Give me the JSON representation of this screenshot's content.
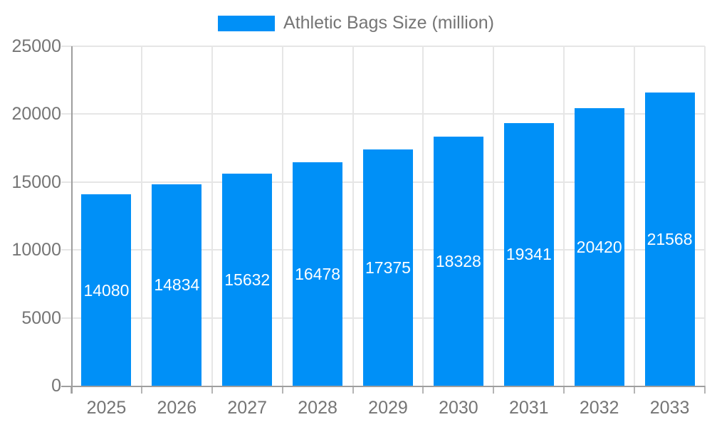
{
  "chart_data": {
    "type": "bar",
    "title": "Athletic Bags Size (million)",
    "legend_entries": [
      "Athletic Bags Size (million)"
    ],
    "legend_position": "top-center",
    "categories": [
      "2025",
      "2026",
      "2027",
      "2028",
      "2029",
      "2030",
      "2031",
      "2032",
      "2033"
    ],
    "values": [
      14080,
      14834,
      15632,
      16478,
      17375,
      18328,
      19341,
      20420,
      21568
    ],
    "bar_value_labels": [
      "14080",
      "14834",
      "15632",
      "16478",
      "17375",
      "18328",
      "19341",
      "20420",
      "21568"
    ],
    "xlabel": "",
    "ylabel": "",
    "ylim": [
      0,
      25000
    ],
    "yticks": [
      0,
      5000,
      10000,
      15000,
      20000,
      25000
    ],
    "ytick_labels": [
      "0",
      "5000",
      "10000",
      "15000",
      "20000",
      "25000"
    ],
    "grid": true,
    "colors": {
      "bar": "#0090F7",
      "bar_label_text": "#FFFFFF",
      "axis_text": "#757575",
      "grid_line": "#E6E6E6",
      "axis_line": "#9E9E9E",
      "tick_mark": "#B5B5B5",
      "background": "#FFFFFF"
    }
  }
}
